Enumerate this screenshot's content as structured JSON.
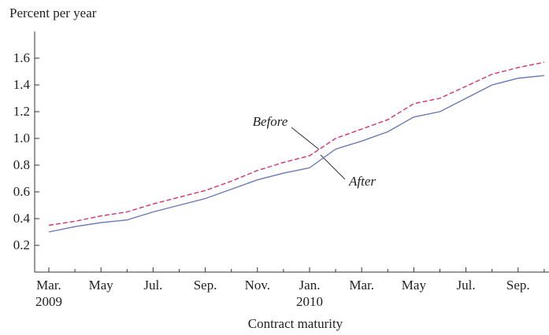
{
  "chart_data": {
    "type": "line",
    "y_label": "Percent per year",
    "x_label": "Contract maturity",
    "categories": [
      "Mar.\n2009",
      null,
      "May",
      null,
      "Jul.",
      null,
      "Sep.",
      null,
      "Nov.",
      null,
      "Jan.\n2010",
      null,
      "Mar.",
      null,
      "May",
      null,
      "Jul.",
      null,
      "Sep.",
      null
    ],
    "series": [
      {
        "name": "Before",
        "color": "#d6336b",
        "dashed": true,
        "values": [
          0.35,
          0.38,
          0.42,
          0.45,
          0.51,
          0.56,
          0.61,
          0.68,
          0.76,
          0.82,
          0.87,
          1.0,
          1.07,
          1.14,
          1.26,
          1.3,
          1.39,
          1.48,
          1.53,
          1.57
        ]
      },
      {
        "name": "After",
        "color": "#6a78b8",
        "dashed": false,
        "values": [
          0.3,
          0.34,
          0.37,
          0.39,
          0.45,
          0.5,
          0.55,
          0.62,
          0.69,
          0.74,
          0.78,
          0.92,
          0.98,
          1.05,
          1.16,
          1.2,
          1.3,
          1.4,
          1.45,
          1.47
        ]
      }
    ],
    "ylim": [
      0,
      1.8
    ],
    "yticks": [
      0.2,
      {
        "value": 0.4,
        "label": "0.4"
      },
      {
        "value": 0.6,
        "label": "0.6"
      },
      {
        "value": 0.8,
        "label": "0.8"
      },
      {
        "value": 1.0,
        "label": "1.0"
      },
      {
        "value": 1.2,
        "label": "1.2"
      },
      {
        "value": 1.4,
        "label": "1.4"
      },
      {
        "value": 1.6,
        "label": "1.6"
      }
    ],
    "grid": false
  }
}
